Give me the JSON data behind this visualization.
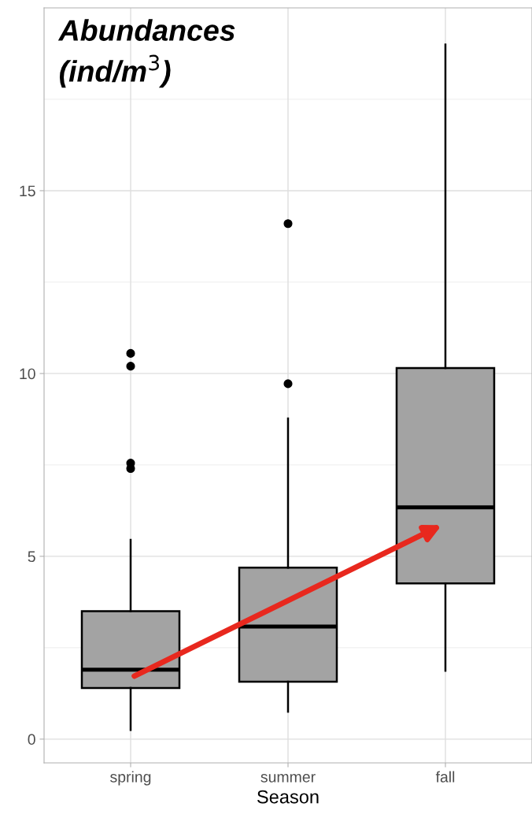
{
  "chart_data": {
    "type": "box",
    "title": "Abundances\n(ind/m$^{3}$)",
    "xlabel": "Season",
    "categories": [
      "spring",
      "summer",
      "fall"
    ],
    "boxes": [
      {
        "low": 0.25,
        "q1": 1.4,
        "median": 1.9,
        "q3": 3.5,
        "high": 5.45,
        "outliers": [
          10.55,
          10.2,
          7.55,
          7.4
        ]
      },
      {
        "low": 0.75,
        "q1": 1.57,
        "median": 3.08,
        "q3": 4.69,
        "high": 8.77,
        "outliers": [
          9.72,
          14.1
        ]
      },
      {
        "low": 1.87,
        "q1": 4.26,
        "median": 6.34,
        "q3": 10.15,
        "high": 19.0
      }
    ],
    "color": "#a3a3a3",
    "ylim": [
      -0.65,
      20
    ],
    "yticks": [
      0,
      5,
      10,
      15
    ],
    "grid": true
  }
}
